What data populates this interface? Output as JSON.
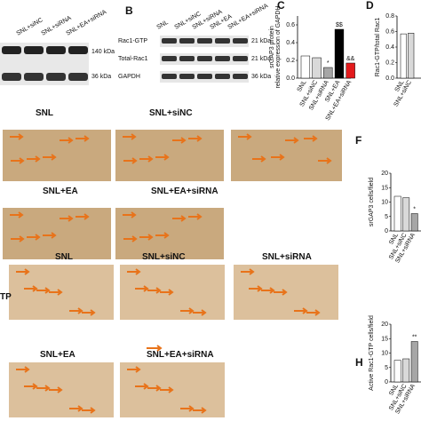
{
  "blot_a": {
    "lanes": [
      "SNL+siNC",
      "SNL+siRNA",
      "SNL+EA+siRNA"
    ],
    "sizes": [
      "140 kDa",
      "36 kDa"
    ]
  },
  "blot_b": {
    "letter": "B",
    "lanes": [
      "SNL",
      "SNL+siNC",
      "SNL+siRNA",
      "SNL+EA",
      "SNL+EA+siRNA"
    ],
    "rows": [
      "Rac1-GTP",
      "Total-Rac1",
      "GAPDH"
    ],
    "sizes": [
      "21 kDa",
      "21 kDa",
      "36 kDa"
    ]
  },
  "charts": [
    {
      "letter": "C",
      "type": "bar",
      "ylabel": "srGAP3 protein\nrelative expression of GAPDH",
      "categories": [
        "SNL",
        "SNL+siNC",
        "SNL+siRNA",
        "SNL+EA",
        "SNL+EA+siRNA"
      ],
      "values": [
        0.25,
        0.23,
        0.12,
        0.55,
        0.17
      ],
      "colors": [
        "#ffffff",
        "#d9d9d9",
        "#a6a6a6",
        "#000000",
        "#e31a1c"
      ],
      "ylim": [
        0,
        0.7
      ],
      "yticks": [
        {
          "value": 0,
          "label": "0.0"
        },
        0.2,
        0.4,
        0.6
      ],
      "annotations": [
        {
          "index": 2,
          "text": "*"
        },
        {
          "index": 3,
          "text": "$$"
        },
        {
          "index": 4,
          "text": "&&"
        }
      ]
    },
    {
      "letter": "D",
      "type": "bar",
      "ylabel": "Rac1-GTP/total Rac1",
      "categories": [
        "SNL",
        "SNL+siNC"
      ],
      "values": [
        0.57,
        0.58
      ],
      "colors": [
        "#ffffff",
        "#d9d9d9"
      ],
      "ylim": [
        0,
        0.8
      ],
      "yticks": [
        {
          "value": 0,
          "label": "0.0"
        },
        0.2,
        0.4,
        0.6,
        0.8
      ]
    },
    {
      "letter": "F",
      "type": "bar",
      "ylabel": "srGAP3 cells/field",
      "categories": [
        "SNL",
        "SNL+siNC",
        "SNL+siRNA"
      ],
      "values": [
        12,
        11.5,
        6
      ],
      "colors": [
        "#ffffff",
        "#d9d9d9",
        "#a6a6a6"
      ],
      "ylim": [
        0,
        20
      ],
      "yticks": [
        0,
        5,
        10,
        15,
        20
      ],
      "annotations": [
        {
          "index": 2,
          "text": "*"
        }
      ]
    },
    {
      "letter": "H",
      "type": "bar",
      "ylabel": "Active Rac1-GTP cells/field",
      "categories": [
        "SNL",
        "SNL+siNC",
        "SNL+siRNA"
      ],
      "values": [
        7.5,
        8,
        14
      ],
      "colors": [
        "#ffffff",
        "#d9d9d9",
        "#a6a6a6"
      ],
      "ylim": [
        0,
        20
      ],
      "yticks": [
        0,
        5,
        10,
        15,
        20
      ],
      "annotations": [
        {
          "index": 2,
          "text": "**"
        }
      ]
    }
  ],
  "micro_top": [
    "SNL",
    "SNL+siNC",
    "SNL+EA",
    "SNL+EA+siRNA"
  ],
  "micro_bottom": [
    "SNL",
    "SNL+siNC",
    "SNL+siRNA",
    "SNL+EA",
    "SNL+EA+siRNA"
  ],
  "side_label": "TP"
}
